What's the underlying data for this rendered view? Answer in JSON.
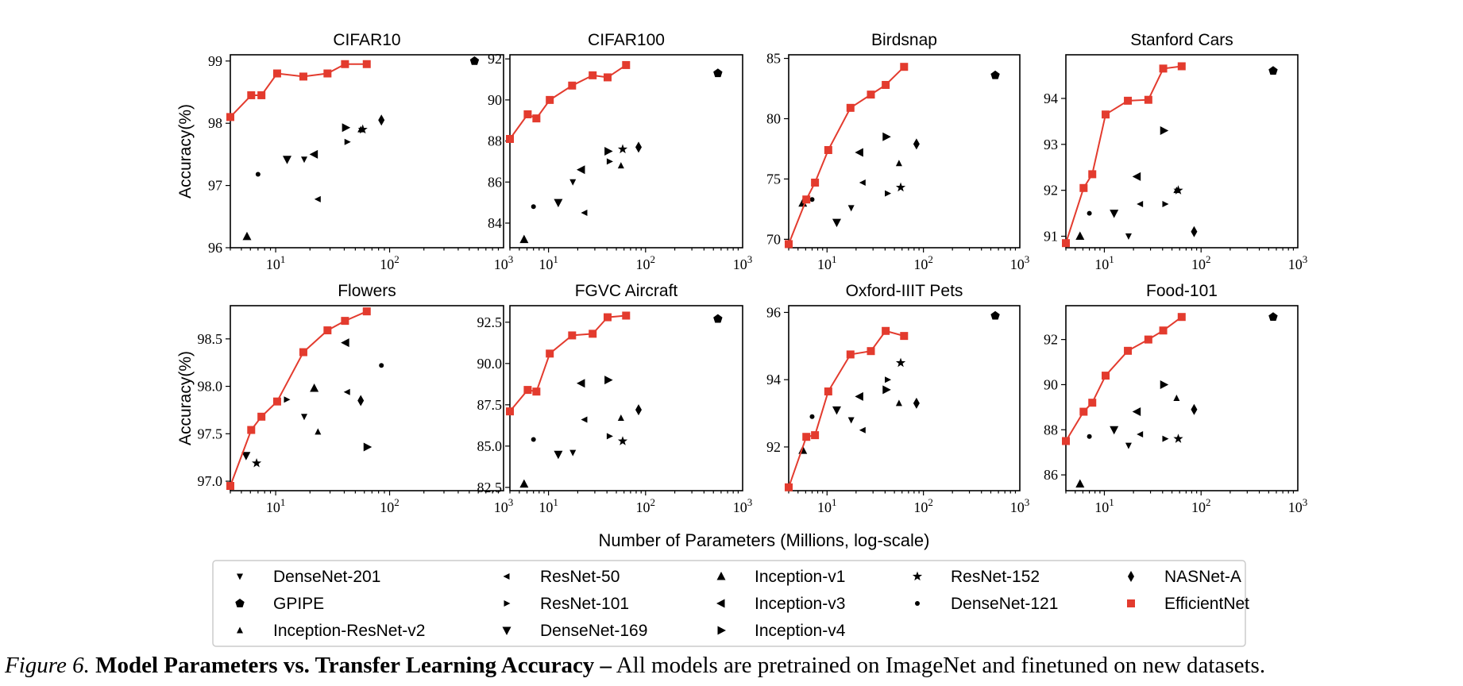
{
  "caption": {
    "label": "Figure 6.",
    "title": "Model Parameters vs. Transfer Learning Accuracy –",
    "text": "All models are pretrained on ImageNet and finetuned on new datasets."
  },
  "shared": {
    "xlabel": "Number of Parameters (Millions, log-scale)",
    "ylabel": "Accuracy(%)",
    "x_scale": "log",
    "xlim": [
      4,
      1000
    ],
    "x_ticks": [
      10,
      100,
      1000
    ],
    "grid": false,
    "colors": {
      "efficientnet": "#e33b2e",
      "baseline": "#000000"
    }
  },
  "legend": {
    "placement": "bottom-center",
    "items": [
      {
        "name": "DenseNet-201",
        "marker": "tri-down-thin"
      },
      {
        "name": "ResNet-50",
        "marker": "tri-left-thin"
      },
      {
        "name": "Inception-v1",
        "marker": "triangle-up"
      },
      {
        "name": "ResNet-152",
        "marker": "star"
      },
      {
        "name": "NASNet-A",
        "marker": "thin-diamond"
      },
      {
        "name": "GPIPE",
        "marker": "pentagon"
      },
      {
        "name": "ResNet-101",
        "marker": "tri-right-thin"
      },
      {
        "name": "Inception-v3",
        "marker": "triangle-left"
      },
      {
        "name": "DenseNet-121",
        "marker": "point"
      },
      {
        "name": "EfficientNet",
        "marker": "square"
      },
      {
        "name": "Inception-ResNet-v2",
        "marker": "tri-up-thin"
      },
      {
        "name": "DenseNet-169",
        "marker": "triangle-down"
      },
      {
        "name": "Inception-v4",
        "marker": "triangle-right"
      }
    ]
  },
  "chart_data": [
    {
      "type": "scatter",
      "title": "CIFAR10",
      "ylim": [
        96,
        99.1
      ],
      "y_ticks": [
        96,
        97,
        98,
        99
      ],
      "efficientnet": {
        "x": [
          4.0,
          6.1,
          7.5,
          10.3,
          17.5,
          28.5,
          40.6,
          63.0
        ],
        "y": [
          98.1,
          98.45,
          98.45,
          98.8,
          98.75,
          98.8,
          98.95,
          98.95
        ]
      },
      "points": [
        {
          "model": "Inception-v1",
          "x": 5.6,
          "y": 96.18
        },
        {
          "model": "DenseNet-121",
          "x": 7.0,
          "y": 97.18
        },
        {
          "model": "DenseNet-169",
          "x": 12.6,
          "y": 97.42
        },
        {
          "model": "DenseNet-201",
          "x": 17.8,
          "y": 97.42
        },
        {
          "model": "Inception-v3",
          "x": 21.8,
          "y": 97.5
        },
        {
          "model": "ResNet-50",
          "x": 23.5,
          "y": 96.78
        },
        {
          "model": "Inception-v4",
          "x": 41.1,
          "y": 97.93
        },
        {
          "model": "ResNet-101",
          "x": 42.5,
          "y": 97.7
        },
        {
          "model": "ResNet-152",
          "x": 58.1,
          "y": 97.9
        },
        {
          "model": "Inception-ResNet-v2",
          "x": 55.8,
          "y": 97.9
        },
        {
          "model": "NASNet-A",
          "x": 84.7,
          "y": 98.05
        },
        {
          "model": "GPIPE",
          "x": 556,
          "y": 99.0
        }
      ]
    },
    {
      "type": "scatter",
      "title": "CIFAR100",
      "ylim": [
        82.8,
        92.2
      ],
      "y_ticks": [
        84,
        86,
        88,
        90,
        92
      ],
      "efficientnet": {
        "x": [
          4.0,
          6.1,
          7.5,
          10.3,
          17.5,
          28.5,
          40.6,
          63.0
        ],
        "y": [
          88.1,
          89.3,
          89.1,
          90.0,
          90.7,
          91.2,
          91.1,
          91.7
        ]
      },
      "points": [
        {
          "model": "Inception-v1",
          "x": 5.6,
          "y": 83.2
        },
        {
          "model": "DenseNet-121",
          "x": 7.0,
          "y": 84.8
        },
        {
          "model": "DenseNet-169",
          "x": 12.6,
          "y": 85.0
        },
        {
          "model": "DenseNet-201",
          "x": 17.8,
          "y": 86.0
        },
        {
          "model": "Inception-v3",
          "x": 21.8,
          "y": 86.6
        },
        {
          "model": "ResNet-50",
          "x": 23.5,
          "y": 84.5
        },
        {
          "model": "Inception-v4",
          "x": 41.1,
          "y": 87.5
        },
        {
          "model": "ResNet-101",
          "x": 42.5,
          "y": 87.0
        },
        {
          "model": "ResNet-152",
          "x": 58.1,
          "y": 87.6
        },
        {
          "model": "Inception-ResNet-v2",
          "x": 55.8,
          "y": 86.8
        },
        {
          "model": "NASNet-A",
          "x": 84.7,
          "y": 87.7
        },
        {
          "model": "GPIPE",
          "x": 556,
          "y": 91.3
        }
      ]
    },
    {
      "type": "scatter",
      "title": "Birdsnap",
      "ylim": [
        69.3,
        85.3
      ],
      "y_ticks": [
        70,
        75,
        80,
        85
      ],
      "efficientnet": {
        "x": [
          4.0,
          6.1,
          7.5,
          10.3,
          17.5,
          28.5,
          40.6,
          63.0
        ],
        "y": [
          69.6,
          73.3,
          74.7,
          77.4,
          80.9,
          82.0,
          82.8,
          84.3
        ]
      },
      "points": [
        {
          "model": "Inception-v1",
          "x": 5.6,
          "y": 73.0
        },
        {
          "model": "DenseNet-121",
          "x": 7.0,
          "y": 73.3
        },
        {
          "model": "DenseNet-169",
          "x": 12.6,
          "y": 71.4
        },
        {
          "model": "DenseNet-201",
          "x": 17.8,
          "y": 72.6
        },
        {
          "model": "Inception-v3",
          "x": 21.8,
          "y": 77.2
        },
        {
          "model": "ResNet-50",
          "x": 23.5,
          "y": 74.7
        },
        {
          "model": "Inception-v4",
          "x": 41.1,
          "y": 78.5
        },
        {
          "model": "ResNet-101",
          "x": 42.5,
          "y": 73.8
        },
        {
          "model": "ResNet-152",
          "x": 58.1,
          "y": 74.3
        },
        {
          "model": "Inception-ResNet-v2",
          "x": 55.8,
          "y": 76.3
        },
        {
          "model": "NASNet-A",
          "x": 84.7,
          "y": 77.9
        },
        {
          "model": "GPIPE",
          "x": 556,
          "y": 83.6
        }
      ]
    },
    {
      "type": "scatter",
      "title": "Stanford Cars",
      "ylim": [
        90.75,
        94.95
      ],
      "y_ticks": [
        91,
        92,
        93,
        94
      ],
      "efficientnet": {
        "x": [
          4.0,
          6.1,
          7.5,
          10.3,
          17.5,
          28.5,
          40.6,
          63.0
        ],
        "y": [
          90.85,
          92.05,
          92.35,
          93.65,
          93.95,
          93.97,
          94.65,
          94.7
        ]
      },
      "points": [
        {
          "model": "Inception-v1",
          "x": 5.6,
          "y": 91.0
        },
        {
          "model": "DenseNet-121",
          "x": 7.0,
          "y": 91.5
        },
        {
          "model": "DenseNet-169",
          "x": 12.6,
          "y": 91.5
        },
        {
          "model": "DenseNet-201",
          "x": 17.8,
          "y": 91.0
        },
        {
          "model": "Inception-v3",
          "x": 21.8,
          "y": 92.3
        },
        {
          "model": "ResNet-50",
          "x": 23.5,
          "y": 91.7
        },
        {
          "model": "Inception-v4",
          "x": 41.1,
          "y": 93.3
        },
        {
          "model": "ResNet-101",
          "x": 42.5,
          "y": 91.7
        },
        {
          "model": "ResNet-152",
          "x": 58.1,
          "y": 92.0
        },
        {
          "model": "Inception-ResNet-v2",
          "x": 55.8,
          "y": 92.0
        },
        {
          "model": "NASNet-A",
          "x": 84.7,
          "y": 91.1
        },
        {
          "model": "GPIPE",
          "x": 556,
          "y": 94.6
        }
      ]
    },
    {
      "type": "scatter",
      "title": "Flowers",
      "ylim": [
        96.9,
        98.85
      ],
      "y_ticks": [
        97.0,
        97.5,
        98.0,
        98.5
      ],
      "y_tick_decimals": 1,
      "efficientnet": {
        "x": [
          4.0,
          6.1,
          7.5,
          10.3,
          17.5,
          28.5,
          40.6,
          63.0
        ],
        "y": [
          96.95,
          97.54,
          97.68,
          97.84,
          98.36,
          98.59,
          98.69,
          98.79
        ]
      },
      "points": [
        {
          "model": "Inception-v1",
          "x": 21.8,
          "y": 97.98
        },
        {
          "model": "DenseNet-121",
          "x": 84.7,
          "y": 98.22
        },
        {
          "model": "DenseNet-169",
          "x": 5.5,
          "y": 97.27
        },
        {
          "model": "DenseNet-201",
          "x": 17.8,
          "y": 97.68
        },
        {
          "model": "Inception-v3",
          "x": 41.1,
          "y": 98.46
        },
        {
          "model": "ResNet-50",
          "x": 42.5,
          "y": 97.94
        },
        {
          "model": "Inception-v4",
          "x": 63.5,
          "y": 97.36
        },
        {
          "model": "ResNet-101",
          "x": 12.5,
          "y": 97.86
        },
        {
          "model": "ResNet-152",
          "x": 6.8,
          "y": 97.19
        },
        {
          "model": "Inception-ResNet-v2",
          "x": 23.5,
          "y": 97.52
        },
        {
          "model": "NASNet-A",
          "x": 55.8,
          "y": 97.85
        }
      ]
    },
    {
      "type": "scatter",
      "title": "FGVC Aircraft",
      "ylim": [
        82.3,
        93.5
      ],
      "y_ticks": [
        82.5,
        85.0,
        87.5,
        90.0,
        92.5
      ],
      "y_tick_decimals": 1,
      "efficientnet": {
        "x": [
          4.0,
          6.1,
          7.5,
          10.3,
          17.5,
          28.5,
          40.6,
          63.0
        ],
        "y": [
          87.1,
          88.4,
          88.3,
          90.6,
          91.7,
          91.8,
          92.8,
          92.9
        ]
      },
      "points": [
        {
          "model": "Inception-v1",
          "x": 5.6,
          "y": 82.7
        },
        {
          "model": "DenseNet-121",
          "x": 7.0,
          "y": 85.4
        },
        {
          "model": "DenseNet-169",
          "x": 12.6,
          "y": 84.5
        },
        {
          "model": "DenseNet-201",
          "x": 17.8,
          "y": 84.6
        },
        {
          "model": "Inception-v3",
          "x": 21.8,
          "y": 88.8
        },
        {
          "model": "ResNet-50",
          "x": 23.5,
          "y": 86.6
        },
        {
          "model": "Inception-v4",
          "x": 41.1,
          "y": 89.0
        },
        {
          "model": "ResNet-101",
          "x": 42.5,
          "y": 85.6
        },
        {
          "model": "ResNet-152",
          "x": 58.1,
          "y": 85.3
        },
        {
          "model": "Inception-ResNet-v2",
          "x": 55.8,
          "y": 86.7
        },
        {
          "model": "NASNet-A",
          "x": 84.7,
          "y": 87.2
        },
        {
          "model": "GPIPE",
          "x": 556,
          "y": 92.7
        }
      ]
    },
    {
      "type": "scatter",
      "title": "Oxford-IIIT Pets",
      "ylim": [
        90.7,
        96.2
      ],
      "y_ticks": [
        92,
        94,
        96
      ],
      "efficientnet": {
        "x": [
          4.0,
          6.1,
          7.5,
          10.3,
          17.5,
          28.5,
          40.6,
          63.0
        ],
        "y": [
          90.8,
          92.3,
          92.35,
          93.65,
          94.75,
          94.85,
          95.45,
          95.3
        ]
      },
      "points": [
        {
          "model": "Inception-v1",
          "x": 5.6,
          "y": 91.9
        },
        {
          "model": "DenseNet-121",
          "x": 7.0,
          "y": 92.9
        },
        {
          "model": "DenseNet-169",
          "x": 12.6,
          "y": 93.1
        },
        {
          "model": "DenseNet-201",
          "x": 17.8,
          "y": 92.8
        },
        {
          "model": "Inception-v3",
          "x": 21.8,
          "y": 93.5
        },
        {
          "model": "ResNet-50",
          "x": 23.5,
          "y": 92.5
        },
        {
          "model": "Inception-v4",
          "x": 41.1,
          "y": 93.7
        },
        {
          "model": "ResNet-101",
          "x": 42.5,
          "y": 94.0
        },
        {
          "model": "ResNet-152",
          "x": 58.1,
          "y": 94.5
        },
        {
          "model": "Inception-ResNet-v2",
          "x": 55.8,
          "y": 93.3
        },
        {
          "model": "NASNet-A",
          "x": 84.7,
          "y": 93.3
        },
        {
          "model": "GPIPE",
          "x": 556,
          "y": 95.9
        }
      ]
    },
    {
      "type": "scatter",
      "title": "Food-101",
      "ylim": [
        85.3,
        93.5
      ],
      "y_ticks": [
        86,
        88,
        90,
        92
      ],
      "efficientnet": {
        "x": [
          4.0,
          6.1,
          7.5,
          10.3,
          17.5,
          28.5,
          40.6,
          63.0
        ],
        "y": [
          87.5,
          88.8,
          89.2,
          90.4,
          91.5,
          92.0,
          92.4,
          93.0
        ]
      },
      "points": [
        {
          "model": "Inception-v1",
          "x": 5.6,
          "y": 85.6
        },
        {
          "model": "DenseNet-121",
          "x": 7.0,
          "y": 87.7
        },
        {
          "model": "DenseNet-169",
          "x": 12.6,
          "y": 88.0
        },
        {
          "model": "DenseNet-201",
          "x": 17.8,
          "y": 87.3
        },
        {
          "model": "Inception-v3",
          "x": 21.8,
          "y": 88.8
        },
        {
          "model": "ResNet-50",
          "x": 23.5,
          "y": 87.8
        },
        {
          "model": "Inception-v4",
          "x": 41.1,
          "y": 90.0
        },
        {
          "model": "ResNet-101",
          "x": 42.5,
          "y": 87.6
        },
        {
          "model": "ResNet-152",
          "x": 58.1,
          "y": 87.6
        },
        {
          "model": "Inception-ResNet-v2",
          "x": 55.8,
          "y": 89.4
        },
        {
          "model": "NASNet-A",
          "x": 84.7,
          "y": 88.9
        },
        {
          "model": "GPIPE",
          "x": 556,
          "y": 93.0
        }
      ]
    }
  ]
}
